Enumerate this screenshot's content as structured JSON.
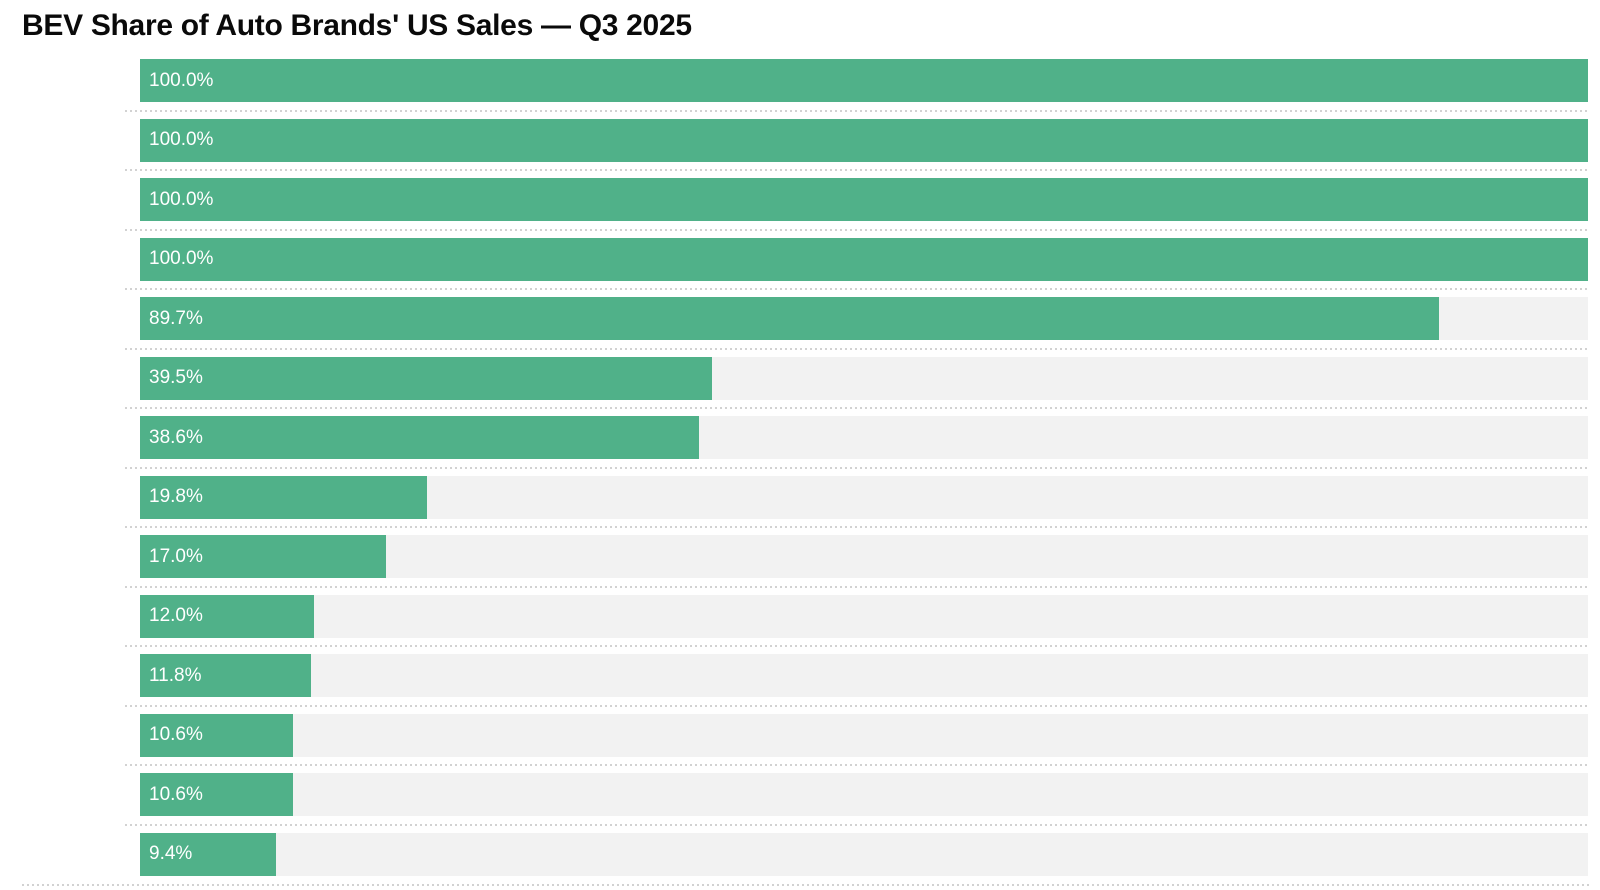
{
  "header": {
    "title": "BEV Share of Auto Brands' US Sales — Q3 2025"
  },
  "chart_data": {
    "type": "bar",
    "orientation": "horizontal",
    "title": "BEV Share of Auto Brands' US Sales — Q3 2025",
    "unit": "%",
    "values": [
      100.0,
      100.0,
      100.0,
      100.0,
      89.7,
      39.5,
      38.6,
      19.8,
      17.0,
      12.0,
      11.8,
      10.6,
      10.6,
      9.4
    ],
    "bar_labels": [
      "100.0%",
      "100.0%",
      "100.0%",
      "100.0%",
      "89.7%",
      "39.5%",
      "38.6%",
      "19.8%",
      "17.0%",
      "12.0%",
      "11.8%",
      "10.6%",
      "10.6%",
      "9.4%"
    ],
    "xlim": [
      0,
      100
    ],
    "value_label_position": "inside-left",
    "grid": "dotted horizontal row separators",
    "legend": "none",
    "bar_color": "#50b189",
    "track_color": "#f2f2f2",
    "label_text_color": "#ffffff",
    "title_color": "#0a0a0a",
    "separator_color": "#d2d2d2"
  }
}
